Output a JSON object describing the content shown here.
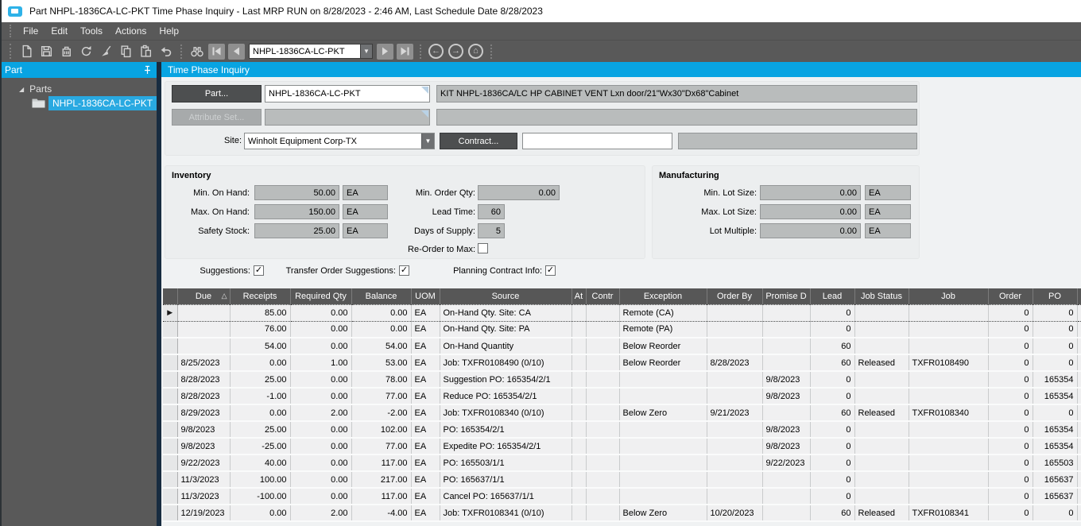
{
  "title_bar": {
    "title": "Part NHPL-1836CA-LC-PKT Time Phase Inquiry  - Last MRP RUN on 8/28/2023 - 2:46 AM, Last Schedule Date  8/28/2023"
  },
  "menu": {
    "items": [
      "File",
      "Edit",
      "Tools",
      "Actions",
      "Help"
    ]
  },
  "toolbar": {
    "icon_names": [
      "new-icon",
      "save-icon",
      "delete-icon",
      "refresh-icon",
      "sweep-icon",
      "copy-icon",
      "paste-icon",
      "undo-icon",
      "find-icon",
      "first-record-icon",
      "previous-record-icon",
      "next-record-icon",
      "last-record-icon",
      "back-icon",
      "forward-icon",
      "home-icon"
    ],
    "part_selector_value": "NHPL-1836CA-LC-PKT"
  },
  "sidebar": {
    "header": "Part",
    "root_label": "Parts",
    "selected_item": "NHPL-1836CA-LC-PKT"
  },
  "main": {
    "header": "Time Phase Inquiry",
    "part_section": {
      "part_button": "Part...",
      "part_value": "NHPL-1836CA-LC-PKT",
      "description": "KIT NHPL-1836CA/LC HP CABINET VENT Lxn door/21\"Wx30\"Dx68\"Cabinet",
      "attribute_set_button": "Attribute Set...",
      "attribute_set_value": "",
      "site_label": "Site:",
      "site_value": "Winholt Equipment Corp-TX",
      "contract_button": "Contract...",
      "contract_value": ""
    },
    "inventory": {
      "title": "Inventory",
      "min_on_hand_label": "Min. On Hand:",
      "min_on_hand": "50.00",
      "min_on_hand_uom": "EA",
      "max_on_hand_label": "Max. On Hand:",
      "max_on_hand": "150.00",
      "max_on_hand_uom": "EA",
      "safety_stock_label": "Safety Stock:",
      "safety_stock": "25.00",
      "safety_stock_uom": "EA",
      "min_order_qty_label": "Min. Order Qty:",
      "min_order_qty": "0.00",
      "lead_time_label": "Lead Time:",
      "lead_time": "60",
      "days_of_supply_label": "Days of Supply:",
      "days_of_supply": "5",
      "reorder_to_max_label": "Re-Order to Max:",
      "reorder_to_max_checked": false
    },
    "manufacturing": {
      "title": "Manufacturing",
      "min_lot_size_label": "Min. Lot Size:",
      "min_lot_size": "0.00",
      "min_lot_uom": "EA",
      "max_lot_size_label": "Max. Lot Size:",
      "max_lot_size": "0.00",
      "max_lot_uom": "EA",
      "lot_multiple_label": "Lot Multiple:",
      "lot_multiple": "0.00",
      "lot_multiple_uom": "EA"
    },
    "options": {
      "suggestions_label": "Suggestions:",
      "suggestions_checked": true,
      "transfer_label": "Transfer Order Suggestions:",
      "transfer_checked": true,
      "planning_label": "Planning Contract Info:",
      "planning_checked": true
    },
    "grid": {
      "columns": [
        "Due",
        "Receipts",
        "Required Qty",
        "Balance",
        "UOM",
        "Source",
        "At",
        "Contr",
        "Exception",
        "Order By",
        "Promise D",
        "Lead",
        "Job Status",
        "Job",
        "Order",
        "PO"
      ],
      "sorted_column": "Due",
      "selected_row": 0,
      "rows": [
        [
          "",
          "85.00",
          "0.00",
          "0.00",
          "EA",
          "On-Hand Qty. Site: CA",
          "",
          "",
          "Remote (CA)",
          "",
          "",
          "0",
          "",
          "",
          "0",
          "0"
        ],
        [
          "",
          "76.00",
          "0.00",
          "0.00",
          "EA",
          "On-Hand Qty. Site: PA",
          "",
          "",
          "Remote (PA)",
          "",
          "",
          "0",
          "",
          "",
          "0",
          "0"
        ],
        [
          "",
          "54.00",
          "0.00",
          "54.00",
          "EA",
          "On-Hand Quantity",
          "",
          "",
          "Below Reorder",
          "",
          "",
          "60",
          "",
          "",
          "0",
          "0"
        ],
        [
          "8/25/2023",
          "0.00",
          "1.00",
          "53.00",
          "EA",
          "Job: TXFR0108490 (0/10)",
          "",
          "",
          "Below Reorder",
          "8/28/2023",
          "",
          "60",
          "Released",
          "TXFR0108490",
          "0",
          "0"
        ],
        [
          "8/28/2023",
          "25.00",
          "0.00",
          "78.00",
          "EA",
          "Suggestion PO: 165354/2/1",
          "",
          "",
          "",
          "",
          "9/8/2023",
          "0",
          "",
          "",
          "0",
          "165354"
        ],
        [
          "8/28/2023",
          "-1.00",
          "0.00",
          "77.00",
          "EA",
          "Reduce PO: 165354/2/1",
          "",
          "",
          "",
          "",
          "9/8/2023",
          "0",
          "",
          "",
          "0",
          "165354"
        ],
        [
          "8/29/2023",
          "0.00",
          "2.00",
          "-2.00",
          "EA",
          "Job: TXFR0108340 (0/10)",
          "",
          "",
          "Below Zero",
          "9/21/2023",
          "",
          "60",
          "Released",
          "TXFR0108340",
          "0",
          "0"
        ],
        [
          "9/8/2023",
          "25.00",
          "0.00",
          "102.00",
          "EA",
          "PO: 165354/2/1",
          "",
          "",
          "",
          "",
          "9/8/2023",
          "0",
          "",
          "",
          "0",
          "165354"
        ],
        [
          "9/8/2023",
          "-25.00",
          "0.00",
          "77.00",
          "EA",
          "Expedite PO: 165354/2/1",
          "",
          "",
          "",
          "",
          "9/8/2023",
          "0",
          "",
          "",
          "0",
          "165354"
        ],
        [
          "9/22/2023",
          "40.00",
          "0.00",
          "117.00",
          "EA",
          "PO: 165503/1/1",
          "",
          "",
          "",
          "",
          "9/22/2023",
          "0",
          "",
          "",
          "0",
          "165503"
        ],
        [
          "11/3/2023",
          "100.00",
          "0.00",
          "217.00",
          "EA",
          "PO: 165637/1/1",
          "",
          "",
          "",
          "",
          "",
          "0",
          "",
          "",
          "0",
          "165637"
        ],
        [
          "11/3/2023",
          "-100.00",
          "0.00",
          "117.00",
          "EA",
          "Cancel PO: 165637/1/1",
          "",
          "",
          "",
          "",
          "",
          "0",
          "",
          "",
          "0",
          "165637"
        ],
        [
          "12/19/2023",
          "0.00",
          "2.00",
          "-4.00",
          "EA",
          "Job: TXFR0108341 (0/10)",
          "",
          "",
          "Below Zero",
          "10/20/2023",
          "",
          "60",
          "Released",
          "TXFR0108341",
          "0",
          "0"
        ]
      ]
    }
  },
  "colors": {
    "accent_blue": "#08a4e2",
    "toolbar_gray": "#595959",
    "field_gray": "#b9bcbc",
    "grid_header": "#575757",
    "splitter_navy": "#182c40"
  }
}
